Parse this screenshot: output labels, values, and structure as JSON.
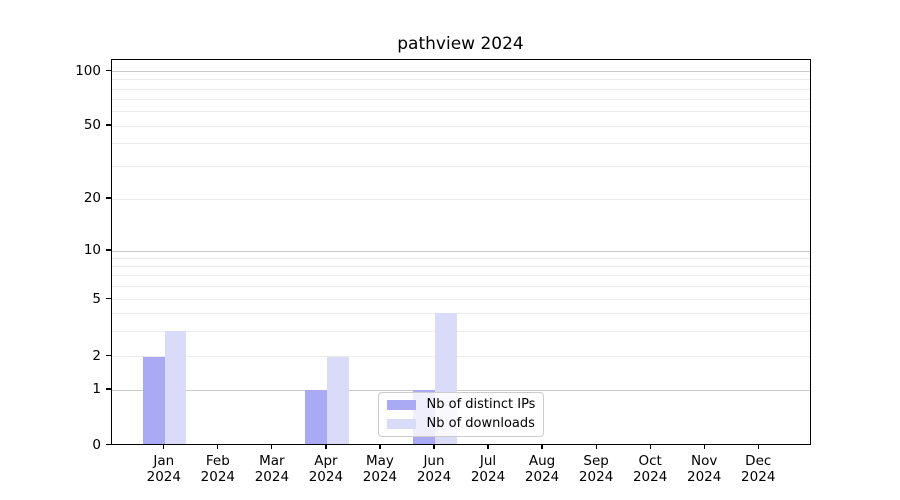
{
  "chart_data": {
    "type": "bar",
    "title": "pathview 2024",
    "categories": [
      [
        "Jan",
        "2024"
      ],
      [
        "Feb",
        "2024"
      ],
      [
        "Mar",
        "2024"
      ],
      [
        "Apr",
        "2024"
      ],
      [
        "May",
        "2024"
      ],
      [
        "Jun",
        "2024"
      ],
      [
        "Jul",
        "2024"
      ],
      [
        "Aug",
        "2024"
      ],
      [
        "Sep",
        "2024"
      ],
      [
        "Oct",
        "2024"
      ],
      [
        "Nov",
        "2024"
      ],
      [
        "Dec",
        "2024"
      ]
    ],
    "series": [
      {
        "name": "Nb of distinct IPs",
        "color": "#a9a9f4",
        "values": [
          2,
          0,
          0,
          1,
          0,
          1,
          0,
          0,
          0,
          0,
          0,
          0
        ]
      },
      {
        "name": "Nb of downloads",
        "color": "#dadaf9",
        "values": [
          3,
          0,
          0,
          2,
          0,
          4,
          0,
          0,
          0,
          0,
          0,
          0
        ]
      }
    ],
    "xlabel": "",
    "ylabel": "",
    "y_axis": {
      "scale": "log-like with zero baseline",
      "tick_values": [
        0,
        1,
        2,
        5,
        10,
        20,
        50,
        100
      ],
      "tick_labels": [
        "0",
        "1",
        "2",
        "5",
        "10",
        "20",
        "50",
        "100"
      ],
      "major_gridlines": [
        1,
        10,
        100
      ],
      "minor_gridlines": [
        2,
        3,
        4,
        5,
        6,
        7,
        8,
        9,
        20,
        30,
        40,
        50,
        60,
        70,
        80,
        90
      ]
    },
    "grid": true,
    "legend_position": "lower center",
    "colors": {
      "axis": "#000000",
      "major_grid": "#c9c9c9",
      "minor_grid": "#ebebeb",
      "legend_border": "#cccccc"
    }
  }
}
